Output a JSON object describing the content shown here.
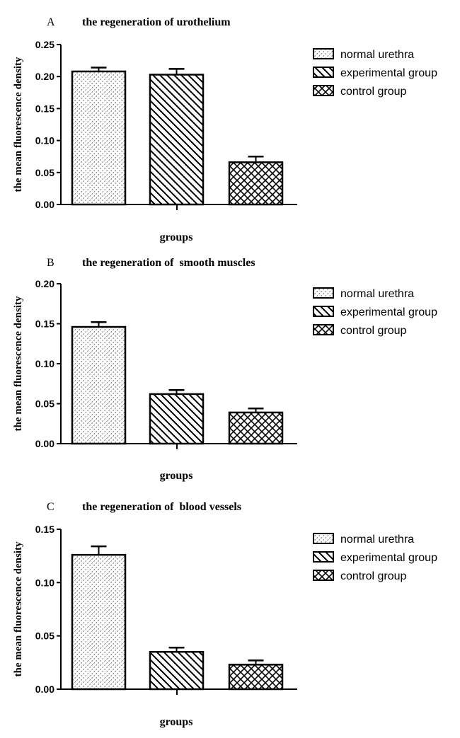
{
  "chart_data": [
    {
      "type": "bar",
      "panel": "A",
      "title": "the regeneration of urothelium",
      "xlabel": "groups",
      "ylabel": "the mean fluorescence density",
      "ylim": [
        0,
        0.25
      ],
      "yticks": [
        "0.00",
        "0.05",
        "0.10",
        "0.15",
        "0.20",
        "0.25"
      ],
      "yticks_values": [
        0,
        0.05,
        0.1,
        0.15,
        0.2,
        0.25
      ],
      "categories": [
        "normal urethra",
        "experimental group",
        "control group"
      ],
      "values": [
        0.208,
        0.203,
        0.066
      ],
      "errors": [
        0.006,
        0.009,
        0.009
      ],
      "legend": [
        "normal urethra",
        "experimental group",
        "control group"
      ],
      "legend_position": "right"
    },
    {
      "type": "bar",
      "panel": "B",
      "title": "the regeneration of  smooth muscles",
      "xlabel": "groups",
      "ylabel": "the mean fluorescence density",
      "ylim": [
        0,
        0.2
      ],
      "yticks": [
        "0.00",
        "0.05",
        "0.10",
        "0.15",
        "0.20"
      ],
      "yticks_values": [
        0,
        0.05,
        0.1,
        0.15,
        0.2
      ],
      "categories": [
        "normal urethra",
        "experimental group",
        "control group"
      ],
      "values": [
        0.146,
        0.062,
        0.039
      ],
      "errors": [
        0.006,
        0.005,
        0.005
      ],
      "legend": [
        "normal urethra",
        "experimental group",
        "control group"
      ],
      "legend_position": "right"
    },
    {
      "type": "bar",
      "panel": "C",
      "title": "the regeneration of  blood vessels",
      "xlabel": "groups",
      "ylabel": "the mean fluorescence density",
      "ylim": [
        0,
        0.15
      ],
      "yticks": [
        "0.00",
        "0.05",
        "0.10",
        "0.15"
      ],
      "yticks_values": [
        0,
        0.05,
        0.1,
        0.15
      ],
      "categories": [
        "normal urethra",
        "experimental group",
        "control group"
      ],
      "values": [
        0.126,
        0.035,
        0.023
      ],
      "errors": [
        0.008,
        0.004,
        0.004
      ],
      "legend": [
        "normal urethra",
        "experimental group",
        "control group"
      ],
      "legend_position": "right"
    }
  ],
  "colors": {
    "ink": "#000000",
    "background": "#ffffff"
  },
  "patterns": [
    "dotted",
    "diagonal-hatch",
    "crosshatch"
  ]
}
